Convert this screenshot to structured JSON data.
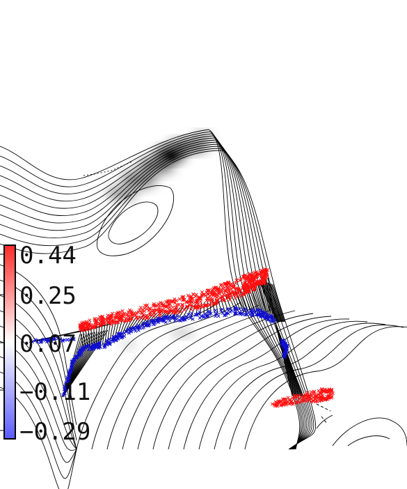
{
  "chart_data": {
    "type": "contour",
    "title": "",
    "xlabel": "",
    "ylabel": "",
    "grid": false,
    "legend": "none",
    "colorbar": {
      "position": "left",
      "orientation": "vertical",
      "colors": [
        "#ff2a2a",
        "#ffffff",
        "#5a5aff"
      ],
      "ticks": [
        "0.44",
        "0.25",
        "0.07",
        "−0.11",
        "−0.29"
      ],
      "tick_values": [
        0.44,
        0.25,
        0.07,
        -0.11,
        -0.29
      ],
      "range": [
        -0.29,
        0.44
      ]
    },
    "series": [
      {
        "marker": "x",
        "color": "#ff0000"
      },
      {
        "marker": "x",
        "color": "#0000cc"
      },
      {
        "marker": "line",
        "color": "#000000"
      }
    ],
    "contour_color": "#000000",
    "shading_color": "#000000"
  }
}
